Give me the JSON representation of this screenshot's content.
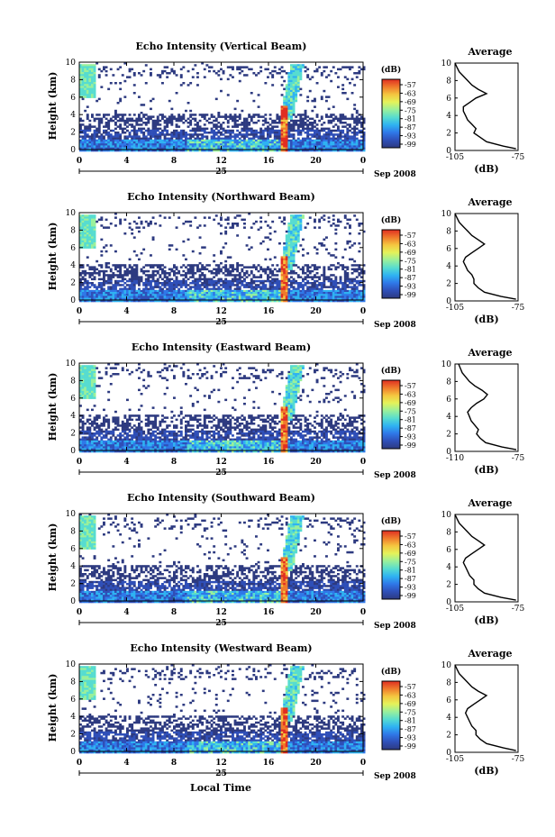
{
  "figure": {
    "date_label": "Sep 2008",
    "day_label": "25",
    "xlabel": "Local Time",
    "colorbar_unit": "(dB)",
    "colorbar_ticks": [
      "-57",
      "-63",
      "-69",
      "-75",
      "-81",
      "-87",
      "-93",
      "-99"
    ],
    "colorbar_colors": [
      "#2d3a80",
      "#2f4fb8",
      "#2f78e8",
      "#2fb2f2",
      "#57dcd0",
      "#9af09b",
      "#e4f25a",
      "#f4c640",
      "#ef7a2c",
      "#e02e22"
    ],
    "profile_title": "Average",
    "profile_xlabel": "(dB)"
  },
  "chart_data": [
    {
      "type": "heatmap",
      "title": "Echo Intensity (Vertical Beam)",
      "xlabel": "Local Time",
      "ylabel": "Height (km)",
      "x_ticks": [
        "0",
        "4",
        "8",
        "12",
        "16",
        "20",
        "0"
      ],
      "y_ticks": [
        "0",
        "2",
        "4",
        "6",
        "8",
        "10"
      ],
      "xlim": [
        0,
        24
      ],
      "ylim": [
        0,
        10
      ],
      "colorbar_range_dB": [
        -99,
        -57
      ],
      "profile": {
        "title": "Average",
        "xlabel": "(dB)",
        "xlim": [
          -105,
          -75
        ],
        "x_ticks": [
          "-105",
          "-75"
        ],
        "heights_km": [
          0.2,
          0.5,
          1.0,
          1.5,
          2.0,
          2.5,
          3.0,
          3.5,
          4.0,
          4.5,
          5.0,
          5.5,
          6.0,
          6.5,
          7.0,
          7.5,
          8.0,
          8.5,
          9.0,
          9.5,
          10.0
        ],
        "dB": [
          -76,
          -82,
          -90,
          -93,
          -96,
          -95,
          -97,
          -99,
          -100,
          -101,
          -101,
          -98,
          -95,
          -90,
          -94,
          -97,
          -99,
          -101,
          -103,
          -104,
          -105
        ]
      }
    },
    {
      "type": "heatmap",
      "title": "Echo Intensity (Northward Beam)",
      "xlabel": "Local Time",
      "ylabel": "Height (km)",
      "x_ticks": [
        "0",
        "4",
        "8",
        "12",
        "16",
        "20",
        "0"
      ],
      "y_ticks": [
        "0",
        "2",
        "4",
        "6",
        "8",
        "10"
      ],
      "xlim": [
        0,
        24
      ],
      "ylim": [
        0,
        10
      ],
      "colorbar_range_dB": [
        -99,
        -57
      ],
      "profile": {
        "title": "Average",
        "xlabel": "(dB)",
        "xlim": [
          -105,
          -75
        ],
        "x_ticks": [
          "-105",
          "-75"
        ],
        "heights_km": [
          0.2,
          0.5,
          1.0,
          1.5,
          2.0,
          2.5,
          3.0,
          3.5,
          4.0,
          4.5,
          5.0,
          5.5,
          6.0,
          6.5,
          7.0,
          7.5,
          8.0,
          8.5,
          9.0,
          9.5,
          10.0
        ],
        "dB": [
          -76,
          -83,
          -91,
          -94,
          -96,
          -96,
          -97,
          -99,
          -100,
          -101,
          -100,
          -97,
          -94,
          -91,
          -94,
          -97,
          -99,
          -101,
          -103,
          -104,
          -105
        ]
      }
    },
    {
      "type": "heatmap",
      "title": "Echo Intensity (Eastward Beam)",
      "xlabel": "Local Time",
      "ylabel": "Height (km)",
      "x_ticks": [
        "0",
        "4",
        "8",
        "12",
        "16",
        "20",
        "0"
      ],
      "y_ticks": [
        "0",
        "2",
        "4",
        "6",
        "8",
        "10"
      ],
      "xlim": [
        0,
        24
      ],
      "ylim": [
        0,
        10
      ],
      "colorbar_range_dB": [
        -99,
        -57
      ],
      "profile": {
        "title": "Average",
        "xlabel": "(dB)",
        "xlim": [
          -110,
          -75
        ],
        "x_ticks": [
          "-110",
          "-75"
        ],
        "heights_km": [
          0.2,
          0.5,
          1.0,
          1.5,
          2.0,
          2.5,
          3.0,
          3.5,
          4.0,
          4.5,
          5.0,
          5.5,
          6.0,
          6.5,
          7.0,
          7.5,
          8.0,
          8.5,
          9.0,
          9.5,
          10.0
        ],
        "dB": [
          -76,
          -84,
          -93,
          -96,
          -98,
          -97,
          -99,
          -101,
          -102,
          -103,
          -101,
          -98,
          -94,
          -92,
          -95,
          -99,
          -102,
          -104,
          -106,
          -107,
          -108
        ]
      }
    },
    {
      "type": "heatmap",
      "title": "Echo Intensity (Southward Beam)",
      "xlabel": "Local Time",
      "ylabel": "Height (km)",
      "x_ticks": [
        "0",
        "4",
        "8",
        "12",
        "16",
        "20",
        "0"
      ],
      "y_ticks": [
        "0",
        "2",
        "4",
        "6",
        "8",
        "10"
      ],
      "xlim": [
        0,
        24
      ],
      "ylim": [
        0,
        10
      ],
      "colorbar_range_dB": [
        -99,
        -57
      ],
      "profile": {
        "title": "Average",
        "xlabel": "(dB)",
        "xlim": [
          -105,
          -75
        ],
        "x_ticks": [
          "-105",
          "-75"
        ],
        "heights_km": [
          0.2,
          0.5,
          1.0,
          1.5,
          2.0,
          2.5,
          3.0,
          3.5,
          4.0,
          4.5,
          5.0,
          5.5,
          6.0,
          6.5,
          7.0,
          7.5,
          8.0,
          8.5,
          9.0,
          9.5,
          10.0
        ],
        "dB": [
          -76,
          -83,
          -91,
          -94,
          -96,
          -96,
          -98,
          -99,
          -100,
          -101,
          -100,
          -97,
          -94,
          -91,
          -94,
          -97,
          -99,
          -101,
          -103,
          -104,
          -105
        ]
      }
    },
    {
      "type": "heatmap",
      "title": "Echo Intensity (Westward Beam)",
      "xlabel": "Local Time",
      "ylabel": "Height (km)",
      "x_ticks": [
        "0",
        "4",
        "8",
        "12",
        "16",
        "20",
        "0"
      ],
      "y_ticks": [
        "0",
        "2",
        "4",
        "6",
        "8",
        "10"
      ],
      "xlim": [
        0,
        24
      ],
      "ylim": [
        0,
        10
      ],
      "colorbar_range_dB": [
        -99,
        -57
      ],
      "profile": {
        "title": "Average",
        "xlabel": "(dB)",
        "xlim": [
          -105,
          -75
        ],
        "x_ticks": [
          "-105",
          "-75"
        ],
        "heights_km": [
          0.2,
          0.5,
          1.0,
          1.5,
          2.0,
          2.5,
          3.0,
          3.5,
          4.0,
          4.5,
          5.0,
          5.5,
          6.0,
          6.5,
          7.0,
          7.5,
          8.0,
          8.5,
          9.0,
          9.5,
          10.0
        ],
        "dB": [
          -76,
          -82,
          -90,
          -93,
          -95,
          -95,
          -97,
          -98,
          -99,
          -100,
          -99,
          -96,
          -93,
          -90,
          -94,
          -97,
          -99,
          -101,
          -103,
          -104,
          -105
        ]
      }
    }
  ]
}
